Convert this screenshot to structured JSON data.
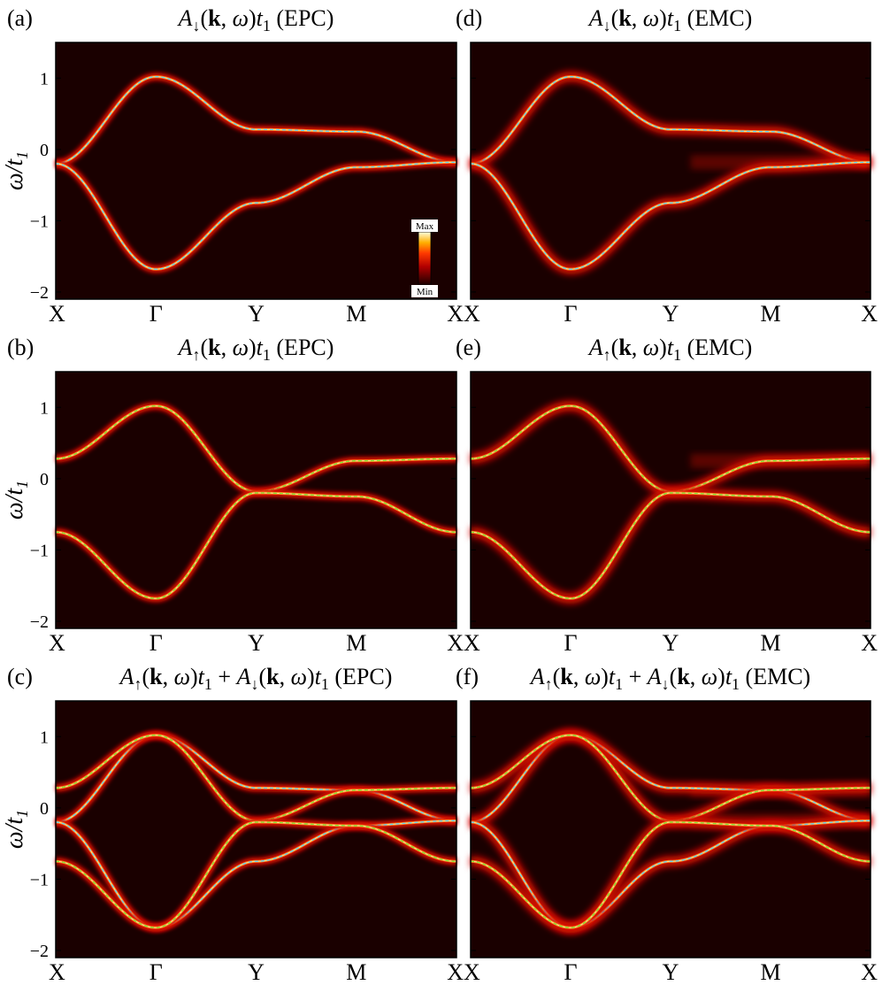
{
  "colors": {
    "background": "#1a0000",
    "spin_down_dash": "#5fd6ff",
    "spin_up_dash": "#7fe83a",
    "band_core": "#fff1a8",
    "band_mid": "#ff8a1c",
    "band_glow": "#d80c00"
  },
  "chart_data": [
    {
      "type": "heatmap",
      "panel": "(a)",
      "title": "A↓(k,ω)t1 (EPC)",
      "spin": "down",
      "method": "EPC",
      "xlabel": "",
      "ylabel": "ω/t1",
      "xticks": [
        "X",
        "Γ",
        "Y",
        "M",
        "X"
      ],
      "yticks": [
        "1",
        "0",
        "−1",
        "−2"
      ],
      "ylim": [
        -2.1,
        1.5
      ],
      "colorbar": {
        "max_label": "Max",
        "min_label": "Min"
      }
    },
    {
      "type": "heatmap",
      "panel": "(b)",
      "title": "A↑(k,ω)t1 (EPC)",
      "spin": "up",
      "method": "EPC",
      "xlabel": "",
      "ylabel": "ω/t1",
      "xticks": [
        "X",
        "Γ",
        "Y",
        "M",
        "X"
      ],
      "yticks": [
        "1",
        "0",
        "−1",
        "−2"
      ],
      "ylim": [
        -2.1,
        1.5
      ]
    },
    {
      "type": "heatmap",
      "panel": "(c)",
      "title": "A↑(k,ω)t1 + A↓(k,ω)t1 (EPC)",
      "spin": "both",
      "method": "EPC",
      "xlabel": "",
      "ylabel": "ω/t1",
      "xticks": [
        "X",
        "Γ",
        "Y",
        "M",
        "X"
      ],
      "yticks": [
        "1",
        "0",
        "−1",
        "−2"
      ],
      "ylim": [
        -2.1,
        1.5
      ]
    },
    {
      "type": "heatmap",
      "panel": "(d)",
      "title": "A↓(k,ω)t1 (EMC)",
      "spin": "down",
      "method": "EMC",
      "xlabel": "",
      "ylabel": "",
      "xticks": [
        "X",
        "Γ",
        "Y",
        "M",
        "X"
      ],
      "yticks": [],
      "ylim": [
        -2.1,
        1.5
      ]
    },
    {
      "type": "heatmap",
      "panel": "(e)",
      "title": "A↑(k,ω)t1 (EMC)",
      "spin": "up",
      "method": "EMC",
      "xlabel": "",
      "ylabel": "",
      "xticks": [
        "X",
        "Γ",
        "Y",
        "M",
        "X"
      ],
      "yticks": [],
      "ylim": [
        -2.1,
        1.5
      ]
    },
    {
      "type": "heatmap",
      "panel": "(f)",
      "title": "A↑(k,ω)t1 + A↓(k,ω)t1 (EMC)",
      "spin": "both",
      "method": "EMC",
      "xlabel": "",
      "ylabel": "",
      "xticks": [
        "X",
        "Γ",
        "Y",
        "M",
        "X"
      ],
      "yticks": [],
      "ylim": [
        -2.1,
        1.5
      ]
    }
  ],
  "bands": {
    "down_upper": {
      "X": -0.2,
      "Gamma": 1.02,
      "Y": 0.28,
      "M": 0.25,
      "X_end": -0.18
    },
    "down_lower": {
      "X": -0.2,
      "Gamma": -1.68,
      "Y": -0.75,
      "M": -0.25,
      "X_end": -0.18
    },
    "up_upper": {
      "X": 0.28,
      "Gamma": 1.02,
      "Y": -0.18,
      "M": 0.25,
      "X_end": 0.28
    },
    "up_lower": {
      "X": -0.75,
      "Gamma": -1.68,
      "Y": -0.2,
      "M": -0.25,
      "X_end": -0.75
    }
  }
}
